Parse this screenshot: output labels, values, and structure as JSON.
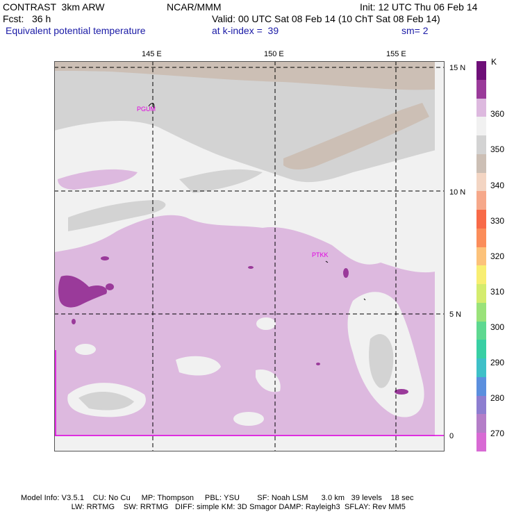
{
  "header": {
    "model": "CONTRAST  3km ARW",
    "center": "NCAR/MMM",
    "init": "Init: 12 UTC Thu 06 Feb 14",
    "fcst": "Fcst:   36 h",
    "valid": "Valid: 00 UTC Sat 08 Feb 14 (10 ChT Sat 08 Feb 14)",
    "field": "Equivalent potential temperature",
    "level": "at k-index =  39",
    "smooth": "sm= 2"
  },
  "map": {
    "lon_labels": [
      "145 E",
      "150 E",
      "155 E"
    ],
    "lat_labels": [
      "15 N",
      "10 N",
      "5 N",
      "0"
    ],
    "stations": [
      "PGUM",
      "PTKK"
    ]
  },
  "colorbar": {
    "unit": "K",
    "labels": [
      "360",
      "350",
      "340",
      "330",
      "320",
      "310",
      "300",
      "290",
      "280",
      "270"
    ],
    "colors": [
      "#6e0f78",
      "#9a3a9a",
      "#ddb9df",
      "#f1f1f1",
      "#d3d3d3",
      "#ccbfb5",
      "#f3d5c3",
      "#f6a88a",
      "#f86a48",
      "#fb8d5a",
      "#fcc27a",
      "#f8ee72",
      "#d4ec6e",
      "#9ae27a",
      "#5ed890",
      "#38cfa4",
      "#3ec0c8",
      "#5b8fde",
      "#8d7ed0",
      "#b47ec8",
      "#d86ad4"
    ]
  },
  "footer": {
    "line1": "Model Info: V3.5.1    CU: No Cu     MP: Thompson     PBL: YSU        SF: Noah LSM      3.0 km   39 levels    18 sec",
    "line2": "                       LW: RRTMG    SW: RRTMG   DIFF: simple KM: 3D Smagor DAMP: Rayleigh3  SFLAY: Rev MM5"
  }
}
